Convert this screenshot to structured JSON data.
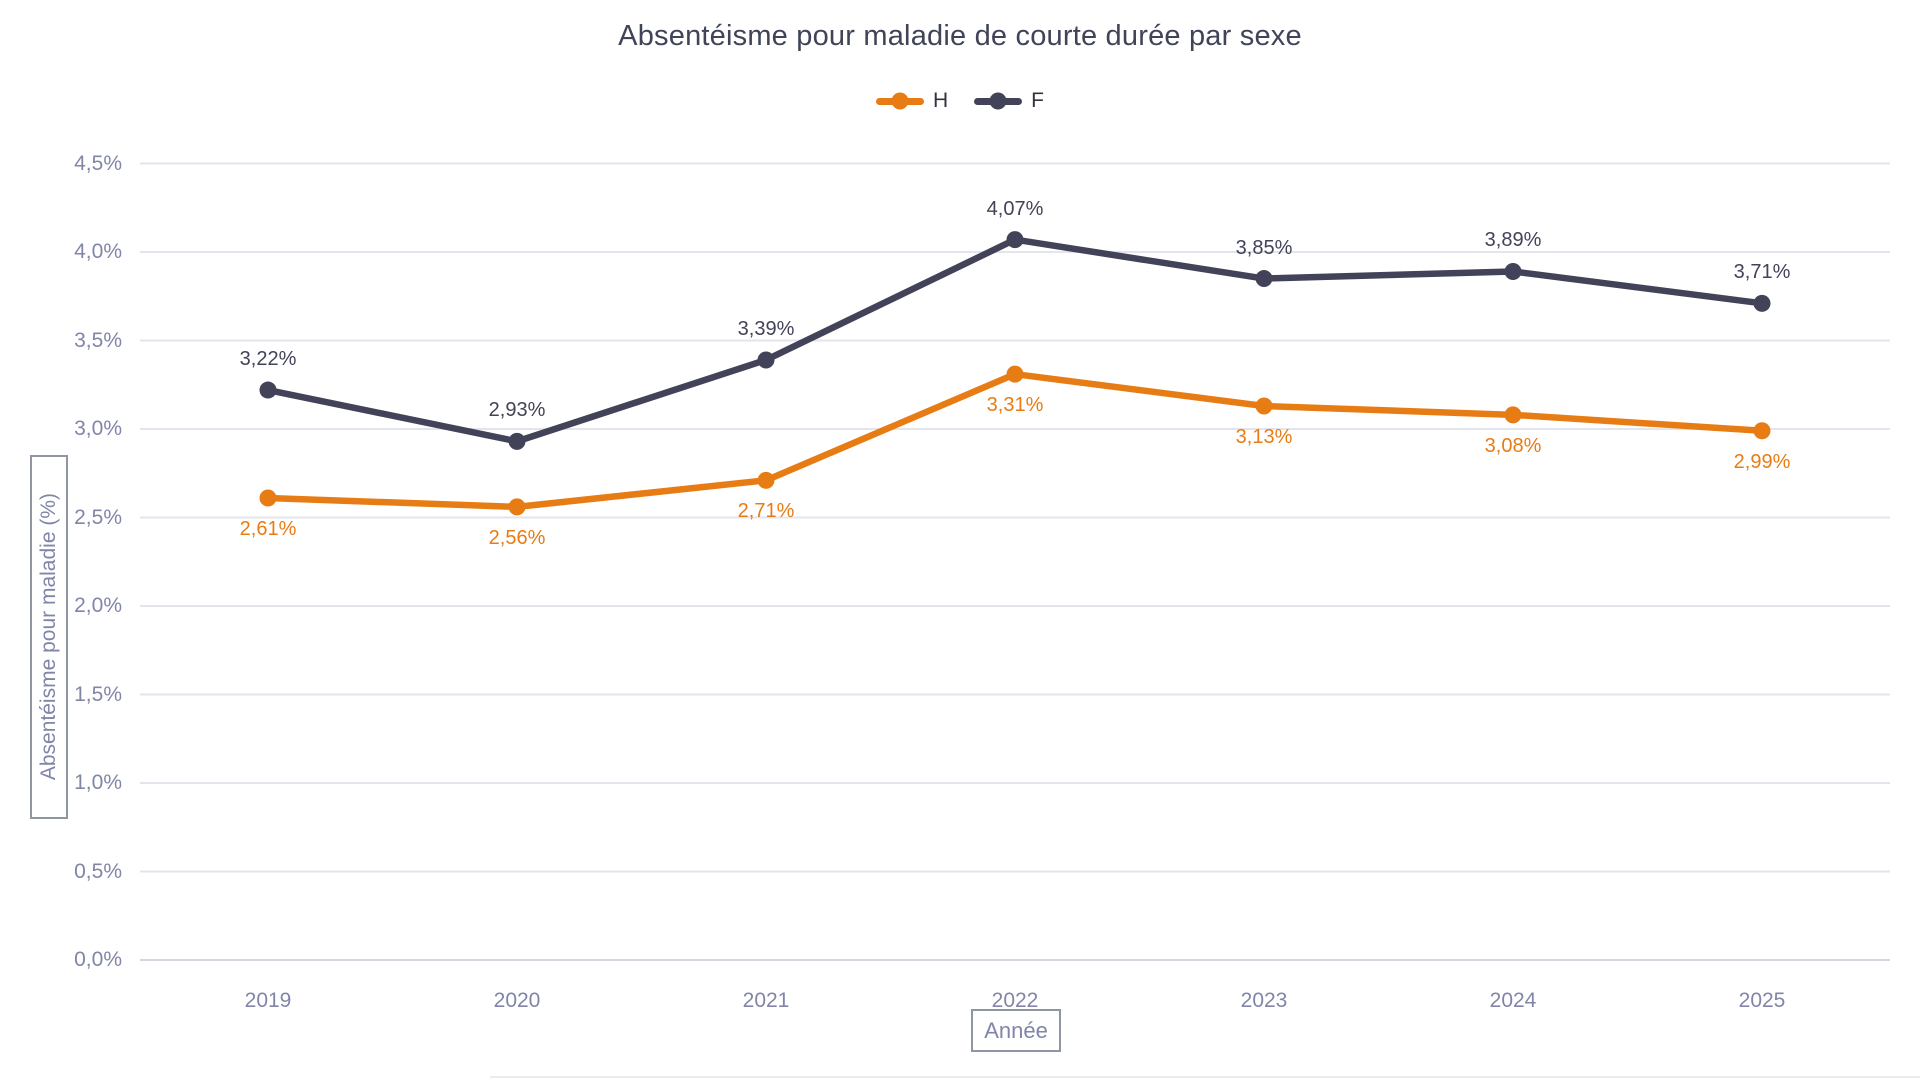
{
  "title": "Absentéisme pour maladie de courte durée par sexe",
  "legend": {
    "items": [
      {
        "label": "H",
        "color": "#E87C14"
      },
      {
        "label": "F",
        "color": "#424259"
      }
    ]
  },
  "y_axis": {
    "title": "Absentéisme pour maladie (%)",
    "tick_labels": [
      "0,0%",
      "0,5%",
      "1,0%",
      "1,5%",
      "2,0%",
      "2,5%",
      "3,0%",
      "3,5%",
      "4,0%",
      "4,5%"
    ]
  },
  "x_axis": {
    "title": "Année",
    "tick_labels": [
      "2019",
      "2020",
      "2021",
      "2022",
      "2023",
      "2024",
      "2025"
    ]
  },
  "chart_data": {
    "type": "line",
    "title": "Absentéisme pour maladie de courte durée par sexe",
    "xlabel": "Année",
    "ylabel": "Absentéisme pour maladie (%)",
    "categories": [
      "2019",
      "2020",
      "2021",
      "2022",
      "2023",
      "2024",
      "2025"
    ],
    "series": [
      {
        "name": "H",
        "color": "#E87C14",
        "values": [
          2.61,
          2.56,
          2.71,
          3.31,
          3.13,
          3.08,
          2.99
        ],
        "data_labels": [
          "2,61%",
          "2,56%",
          "2,71%",
          "3,31%",
          "3,13%",
          "3,08%",
          "2,99%"
        ],
        "label_position": "below"
      },
      {
        "name": "F",
        "color": "#424259",
        "values": [
          3.22,
          2.93,
          3.39,
          4.07,
          3.85,
          3.89,
          3.71
        ],
        "data_labels": [
          "3,22%",
          "2,93%",
          "3,39%",
          "4,07%",
          "3,85%",
          "3,89%",
          "3,71%"
        ],
        "label_position": "above"
      }
    ],
    "ylim": [
      0,
      4.5
    ],
    "ytick_step": 0.5,
    "grid": "horizontal",
    "legend_position": "top-center",
    "number_format": "percent-comma-decimal"
  },
  "colors": {
    "grid": "#E3E4EC",
    "grid_zero": "#D6D7DE",
    "tick_text": "#8185A8",
    "title_text": "#3F4458",
    "axis_box_border": "#9095A4"
  }
}
